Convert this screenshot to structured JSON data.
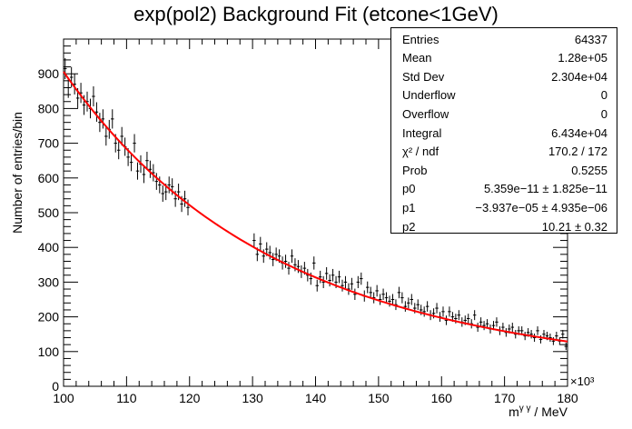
{
  "chart_data": {
    "type": "scatter",
    "title": "exp(pol2) Background Fit (etcone<1GeV)",
    "xlabel": "m^{γ γ} / MeV",
    "ylabel": "Number of entries/bin",
    "x_exponent_label": "×10³",
    "xlim": [
      100,
      180
    ],
    "ylim": [
      0,
      1000
    ],
    "x_ticks": [
      100,
      110,
      120,
      130,
      140,
      150,
      160,
      170,
      180
    ],
    "y_ticks": [
      0,
      100,
      200,
      300,
      400,
      500,
      600,
      700,
      800,
      900
    ],
    "blinded_region": [
      120,
      130
    ],
    "fit": {
      "name": "exp(pol2)",
      "color": "#ff0000",
      "p0": 5.359e-11,
      "p1": -3.937e-05,
      "p2": 10.21
    },
    "series": [
      {
        "marker_color": "#000000",
        "x": [
          100.25,
          100.75,
          101.25,
          101.75,
          102.25,
          102.75,
          103.25,
          103.75,
          104.25,
          104.75,
          105.25,
          105.75,
          106.25,
          106.75,
          107.25,
          107.75,
          108.25,
          108.75,
          109.25,
          109.75,
          110.25,
          110.75,
          111.25,
          111.75,
          112.25,
          112.75,
          113.25,
          113.75,
          114.25,
          114.75,
          115.25,
          115.75,
          116.25,
          116.75,
          117.25,
          117.75,
          118.25,
          118.75,
          119.25,
          119.75,
          130.25,
          130.75,
          131.25,
          131.75,
          132.25,
          132.75,
          133.25,
          133.75,
          134.25,
          134.75,
          135.25,
          135.75,
          136.25,
          136.75,
          137.25,
          137.75,
          138.25,
          138.75,
          139.25,
          139.75,
          140.25,
          140.75,
          141.25,
          141.75,
          142.25,
          142.75,
          143.25,
          143.75,
          144.25,
          144.75,
          145.25,
          145.75,
          146.25,
          146.75,
          147.25,
          147.75,
          148.25,
          148.75,
          149.25,
          149.75,
          150.25,
          150.75,
          151.25,
          151.75,
          152.25,
          152.75,
          153.25,
          153.75,
          154.25,
          154.75,
          155.25,
          155.75,
          156.25,
          156.75,
          157.25,
          157.75,
          158.25,
          158.75,
          159.25,
          159.75,
          160.25,
          160.75,
          161.25,
          161.75,
          162.25,
          162.75,
          163.25,
          163.75,
          164.25,
          164.75,
          165.25,
          165.75,
          166.25,
          166.75,
          167.25,
          167.75,
          168.25,
          168.75,
          169.25,
          169.75,
          170.25,
          170.75,
          171.25,
          171.75,
          172.25,
          172.75,
          173.25,
          173.75,
          174.25,
          174.75,
          175.25,
          175.75,
          176.25,
          176.75,
          177.25,
          177.75,
          178.25,
          178.75,
          179.25,
          179.75
        ],
        "y": [
          915,
          860,
          890,
          870,
          830,
          845,
          810,
          820,
          800,
          835,
          790,
          760,
          770,
          720,
          740,
          770,
          700,
          680,
          720,
          690,
          660,
          645,
          700,
          620,
          640,
          610,
          650,
          625,
          615,
          590,
          580,
          555,
          560,
          580,
          575,
          540,
          560,
          525,
          540,
          515,
          420,
          380,
          410,
          375,
          395,
          385,
          365,
          380,
          375,
          355,
          360,
          340,
          375,
          350,
          345,
          330,
          340,
          320,
          310,
          355,
          290,
          315,
          300,
          325,
          305,
          320,
          300,
          315,
          290,
          300,
          280,
          295,
          265,
          300,
          310,
          260,
          285,
          270,
          255,
          275,
          250,
          265,
          255,
          245,
          250,
          235,
          270,
          255,
          230,
          240,
          250,
          225,
          235,
          220,
          215,
          230,
          205,
          210,
          225,
          200,
          215,
          190,
          215,
          200,
          195,
          205,
          185,
          190,
          195,
          180,
          205,
          170,
          185,
          175,
          180,
          165,
          175,
          185,
          160,
          170,
          155,
          165,
          170,
          150,
          160,
          160,
          145,
          155,
          150,
          140,
          160,
          135,
          150,
          145,
          140,
          130,
          145,
          130,
          150,
          115
        ]
      }
    ]
  },
  "stats_box": {
    "rows": [
      {
        "label": "Entries",
        "value": "64337"
      },
      {
        "label": "Mean",
        "value": "1.28e+05"
      },
      {
        "label": "Std Dev",
        "value": "2.304e+04"
      },
      {
        "label": "Underflow",
        "value": "0"
      },
      {
        "label": "Overflow",
        "value": "0"
      },
      {
        "label": "Integral",
        "value": "6.434e+04"
      },
      {
        "label": "χ² / ndf",
        "value": "170.2 / 172"
      },
      {
        "label": "Prob",
        "value": "0.5255"
      },
      {
        "label": "p0",
        "value": "5.359e−11 ± 1.825e−11"
      },
      {
        "label": "p1",
        "value": "−3.937e−05 ± 4.935e−06"
      },
      {
        "label": "p2",
        "value": "10.21 ± 0.32"
      }
    ]
  }
}
